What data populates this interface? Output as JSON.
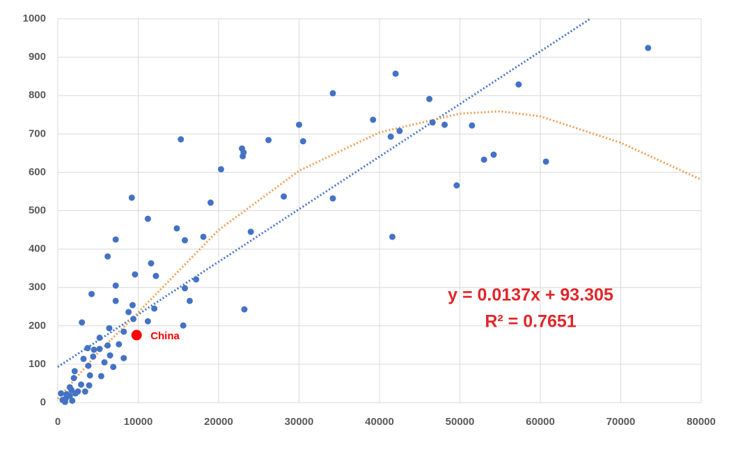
{
  "chart_data": {
    "type": "scatter",
    "xlim": [
      0,
      80000
    ],
    "ylim": [
      0,
      1000
    ],
    "xticks": [
      0,
      10000,
      20000,
      30000,
      40000,
      50000,
      60000,
      70000,
      80000
    ],
    "yticks": [
      0,
      100,
      200,
      300,
      400,
      500,
      600,
      700,
      800,
      900,
      1000
    ],
    "grid": true,
    "series": [
      {
        "color": "#4472c4",
        "x": [
          73400,
          42000,
          34200,
          46200,
          57300,
          39200,
          30000,
          46600,
          48100,
          51500,
          42500,
          41400,
          30500,
          26200,
          15300,
          22900,
          23000,
          23100,
          20300,
          54200,
          53000,
          60700,
          49600,
          19000,
          28100,
          34200,
          9200,
          11200,
          14800,
          24000,
          18100,
          15800,
          7200,
          41600,
          6200,
          11600,
          12200,
          9600,
          17200,
          7200,
          15800,
          4200,
          16400,
          7200,
          23200,
          9300,
          12000,
          8800,
          3000,
          11200,
          15600,
          6400,
          9400,
          8200,
          5200,
          3700,
          4500,
          5200,
          6200,
          7600,
          3200,
          4400,
          6500,
          5800,
          8200,
          3800,
          6900,
          2100,
          4000,
          5400,
          2000,
          2900,
          3900,
          3400,
          1500,
          400,
          600,
          1000,
          1500,
          1800,
          2200,
          2500,
          1700,
          900,
          1100
        ],
        "values": [
          924,
          857,
          806,
          791,
          829,
          737,
          724,
          730,
          724,
          722,
          708,
          693,
          681,
          684,
          686,
          662,
          642,
          652,
          608,
          646,
          633,
          628,
          566,
          521,
          537,
          532,
          534,
          479,
          454,
          445,
          432,
          423,
          425,
          432,
          381,
          363,
          330,
          334,
          321,
          305,
          298,
          283,
          265,
          265,
          243,
          254,
          245,
          236,
          209,
          212,
          201,
          194,
          218,
          185,
          169,
          142,
          138,
          140,
          149,
          152,
          114,
          120,
          123,
          105,
          116,
          96,
          93,
          82,
          71,
          69,
          64,
          47,
          45,
          29,
          40,
          24,
          7,
          11,
          18,
          5,
          24,
          29,
          33,
          2,
          22
        ]
      }
    ],
    "trendlines": [
      {
        "color": "#4472c4",
        "x": [
          0,
          66200
        ],
        "values": [
          93,
          1000
        ]
      },
      {
        "color": "#ed9b4f",
        "x": [
          0,
          5000,
          10000,
          20000,
          30000,
          40000,
          50000,
          55000,
          60000,
          70000,
          80000
        ],
        "values": [
          10,
          130,
          235,
          450,
          604,
          704,
          753,
          759,
          746,
          677,
          581
        ]
      }
    ],
    "highlight": {
      "label": "China",
      "x": 9800,
      "y": 176,
      "color": "#ff0000"
    },
    "annotations": [
      {
        "text": "y = 0.0137x + 93.305",
        "color": "#e0262a"
      },
      {
        "text": "R² = 0.7651",
        "color": "#e0262a"
      }
    ]
  }
}
